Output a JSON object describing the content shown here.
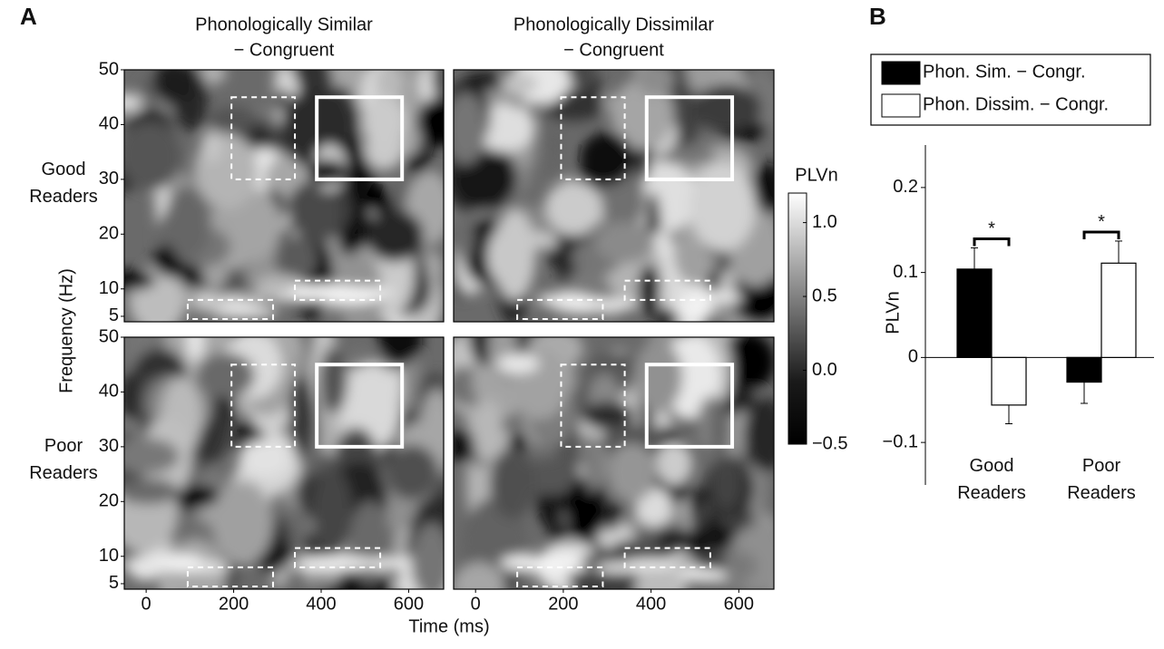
{
  "chart_data": [
    {
      "type": "heatmap",
      "panel_label": "A",
      "columns": [
        {
          "title": [
            "Phonologically Similar",
            "− Congruent"
          ]
        },
        {
          "title": [
            "Phonologically Dissimilar",
            "− Congruent"
          ]
        }
      ],
      "rows": [
        "Good Readers",
        "Poor Readers"
      ],
      "x_label": "Time (ms)",
      "y_label": "Frequency (Hz)",
      "xlim": [
        -50,
        680
      ],
      "xticks": [
        0,
        200,
        400,
        600
      ],
      "ylim": [
        4,
        50
      ],
      "yticks": [
        5,
        10,
        20,
        30,
        40,
        50
      ],
      "regions": [
        {
          "style": "dashed",
          "xlim": [
            195,
            340
          ],
          "ylim": [
            30,
            45
          ]
        },
        {
          "style": "solid",
          "xlim": [
            390,
            585
          ],
          "ylim": [
            30,
            45
          ]
        },
        {
          "style": "dashed",
          "xlim": [
            95,
            290
          ],
          "ylim": [
            4.5,
            8
          ]
        },
        {
          "style": "dashed",
          "xlim": [
            340,
            535
          ],
          "ylim": [
            8,
            11.5
          ]
        }
      ],
      "colorbar": {
        "label": "PLVn",
        "lim": [
          -0.5,
          1.2
        ],
        "ticks": [
          {
            "value": 1.0,
            "label": "1.0"
          },
          {
            "value": 0.5,
            "label": "0.5"
          },
          {
            "value": 0.0,
            "label": "0.0"
          },
          {
            "value": -0.5,
            "label": "−0.5"
          }
        ]
      }
    },
    {
      "type": "bar",
      "panel_label": "B",
      "categories": [
        "Good Readers",
        "Poor Readers"
      ],
      "series": [
        {
          "name": "Phon. Sim. − Congr.",
          "color": "#000000",
          "values": [
            0.104,
            -0.029
          ],
          "errors": [
            0.025,
            0.025
          ]
        },
        {
          "name": "Phon. Dissim. − Congr.",
          "color": "#ffffff",
          "values": [
            -0.056,
            0.111
          ],
          "errors": [
            0.022,
            0.026
          ]
        }
      ],
      "y_label": "PLVn",
      "ylim": [
        -0.15,
        0.25
      ],
      "yticks": [
        {
          "value": -0.1,
          "label": "−0.1"
        },
        0,
        0.1,
        0.2
      ],
      "significance": [
        "*",
        "*"
      ]
    }
  ]
}
